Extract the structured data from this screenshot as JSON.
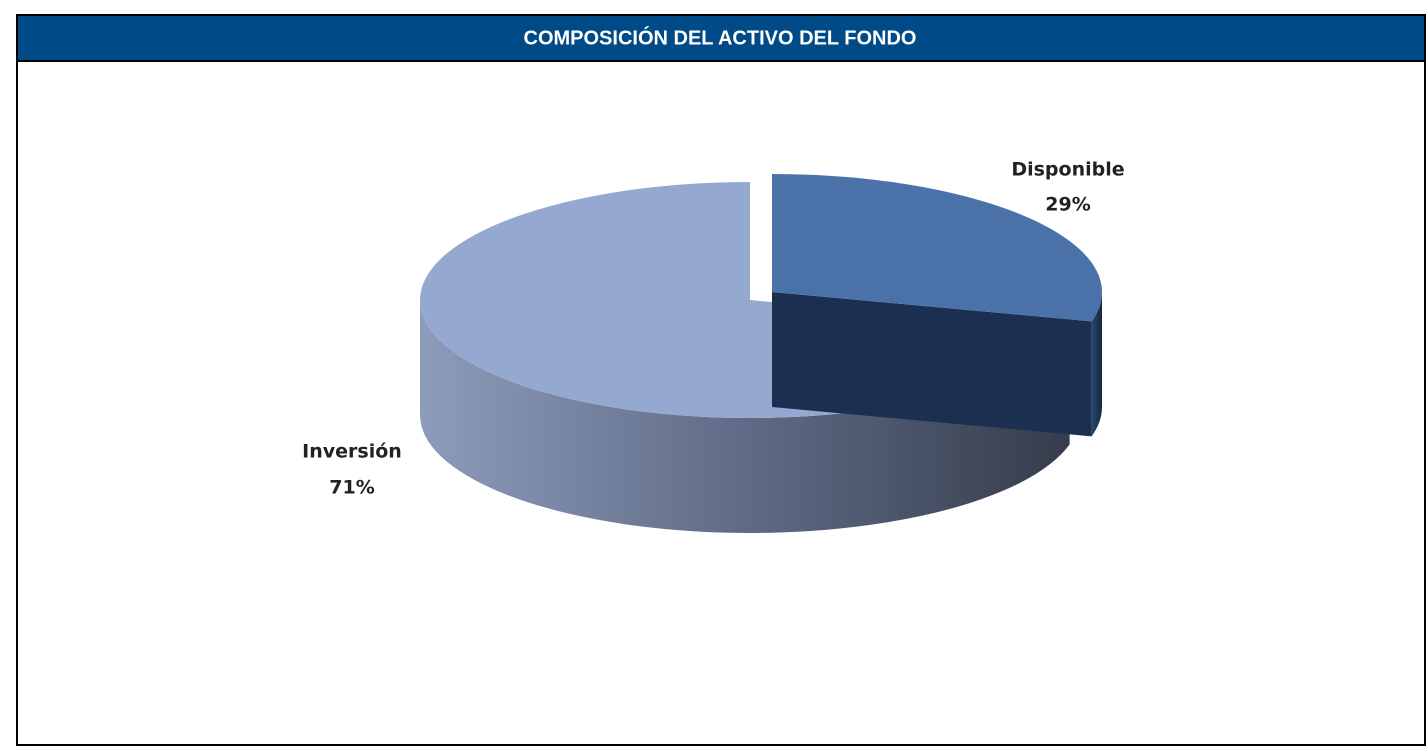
{
  "chart_data": {
    "type": "pie",
    "title": "COMPOSICIÓN DEL ACTIVO DEL FONDO",
    "categories": [
      "Disponible",
      "Inversión"
    ],
    "values": [
      29,
      71
    ],
    "value_labels": [
      "29%",
      "71%"
    ],
    "colors": [
      "#4a72a8",
      "#95a9d0"
    ]
  }
}
